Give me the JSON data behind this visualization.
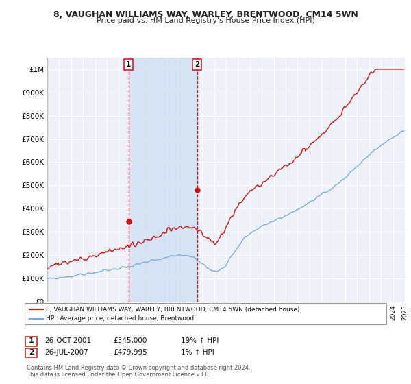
{
  "title": "8, VAUGHAN WILLIAMS WAY, WARLEY, BRENTWOOD, CM14 5WN",
  "subtitle": "Price paid vs. HM Land Registry's House Price Index (HPI)",
  "ylim": [
    0,
    1050000
  ],
  "yticks": [
    0,
    100000,
    200000,
    300000,
    400000,
    500000,
    600000,
    700000,
    800000,
    900000,
    1000000
  ],
  "ytick_labels": [
    "£0",
    "£100K",
    "£200K",
    "£300K",
    "£400K",
    "£500K",
    "£600K",
    "£700K",
    "£800K",
    "£900K",
    "£1M"
  ],
  "hpi_color": "#7aaadd",
  "price_color": "#cc1111",
  "sale1_date_num": 2001.82,
  "sale1_price": 345000,
  "sale2_date_num": 2007.58,
  "sale2_price": 479995,
  "legend_line1": "8, VAUGHAN WILLIAMS WAY, WARLEY, BRENTWOOD, CM14 5WN (detached house)",
  "legend_line2": "HPI: Average price, detached house, Brentwood",
  "annotation1_date": "26-OCT-2001",
  "annotation1_price": "£345,000",
  "annotation1_hpi": "19% ↑ HPI",
  "annotation2_date": "26-JUL-2007",
  "annotation2_price": "£479,995",
  "annotation2_hpi": "1% ↑ HPI",
  "footer": "Contains HM Land Registry data © Crown copyright and database right 2024.\nThis data is licensed under the Open Government Licence v3.0.",
  "bg_color": "#ffffff",
  "plot_bg_color": "#eef2f8",
  "shade_color": "#ccddf5",
  "grid_color": "#ffffff",
  "vline_color": "#cc1111"
}
